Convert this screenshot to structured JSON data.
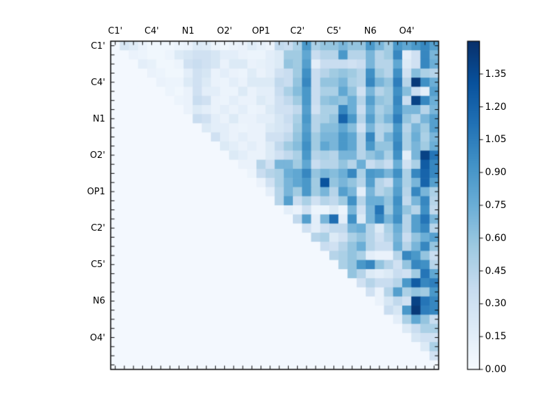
{
  "figure": {
    "background": "#ffffff",
    "title": ""
  },
  "chart_data": {
    "type": "heatmap",
    "colormap": "Blues",
    "vmin": 0.0,
    "vmax": 1.5,
    "grid_size": 36,
    "axis_group_labels": [
      "C1'",
      "C4'",
      "N1",
      "O2'",
      "OP1",
      "C2'",
      "C5'",
      "N6",
      "O4'"
    ],
    "label_cell_positions": [
      0,
      4,
      8,
      12,
      16,
      20,
      24,
      28,
      32
    ],
    "x_axis_side": "top",
    "y_axis_side": "left",
    "legend_position": "right-colorbar",
    "colorbar_ticks": [
      0.0,
      0.15,
      0.3,
      0.45,
      0.6,
      0.75,
      0.9,
      1.05,
      1.2,
      1.35
    ],
    "colorbar_tick_labels": [
      "0.00",
      "0.15",
      "0.30",
      "0.45",
      "0.60",
      "0.75",
      "0.90",
      "1.05",
      "1.20",
      "1.35"
    ],
    "colormap_anchors": [
      "#f7fbff",
      "#deebf7",
      "#c6dbef",
      "#9ecae1",
      "#6baed6",
      "#4292c6",
      "#2171b5",
      "#08519c",
      "#08306b"
    ],
    "matrix": [
      [
        0.03,
        0.25,
        0.18,
        0.1,
        0.05,
        0.05,
        0.05,
        0.08,
        0.1,
        0.2,
        0.18,
        0.08,
        0.05,
        0.08,
        0.1,
        0.18,
        0.12,
        0.08,
        0.4,
        0.35,
        0.5,
        0.9,
        0.5,
        0.6,
        0.6,
        0.7,
        0.6,
        0.6,
        0.9,
        0.7,
        0.55,
        0.9,
        0.8,
        0.9,
        1.0,
        0.85
      ],
      [
        0.03,
        0.03,
        0.1,
        0.08,
        0.05,
        0.05,
        0.08,
        0.2,
        0.25,
        0.3,
        0.3,
        0.25,
        0.15,
        0.15,
        0.1,
        0.08,
        0.08,
        0.15,
        0.2,
        0.55,
        0.55,
        0.8,
        0.35,
        0.45,
        0.45,
        0.9,
        0.45,
        0.45,
        0.7,
        0.45,
        0.55,
        1.0,
        0.15,
        0.3,
        1.0,
        0.7
      ],
      [
        0.03,
        0.03,
        0.03,
        0.15,
        0.12,
        0.05,
        0.05,
        0.08,
        0.3,
        0.35,
        0.3,
        0.25,
        0.1,
        0.2,
        0.2,
        0.1,
        0.12,
        0.15,
        0.2,
        0.6,
        0.55,
        0.85,
        0.15,
        0.35,
        0.35,
        0.35,
        0.3,
        0.35,
        0.7,
        0.45,
        0.45,
        0.8,
        0.2,
        0.3,
        1.0,
        0.75
      ],
      [
        0.03,
        0.03,
        0.03,
        0.03,
        0.1,
        0.08,
        0.05,
        0.05,
        0.15,
        0.3,
        0.25,
        0.1,
        0.15,
        0.1,
        0.08,
        0.18,
        0.1,
        0.15,
        0.3,
        0.35,
        0.55,
        0.95,
        0.35,
        0.45,
        0.55,
        0.6,
        0.55,
        0.45,
        0.95,
        0.55,
        0.45,
        0.95,
        0.3,
        0.65,
        0.5,
        0.45
      ],
      [
        0.03,
        0.03,
        0.03,
        0.03,
        0.03,
        0.1,
        0.08,
        0.08,
        0.2,
        0.3,
        0.2,
        0.1,
        0.08,
        0.15,
        0.1,
        0.2,
        0.2,
        0.2,
        0.4,
        0.35,
        0.6,
        1.0,
        0.35,
        0.6,
        0.6,
        0.7,
        0.5,
        0.45,
        1.0,
        0.7,
        0.6,
        1.05,
        0.45,
        1.45,
        0.95,
        0.75
      ],
      [
        0.03,
        0.03,
        0.03,
        0.03,
        0.03,
        0.03,
        0.08,
        0.05,
        0.1,
        0.3,
        0.15,
        0.15,
        0.08,
        0.08,
        0.2,
        0.1,
        0.15,
        0.15,
        0.35,
        0.5,
        0.65,
        0.9,
        0.35,
        0.5,
        0.5,
        0.8,
        0.6,
        0.3,
        0.7,
        0.45,
        0.55,
        0.95,
        0.65,
        0.35,
        0.15,
        0.85
      ],
      [
        0.03,
        0.03,
        0.03,
        0.03,
        0.03,
        0.03,
        0.03,
        0.08,
        0.1,
        0.35,
        0.3,
        0.1,
        0.08,
        0.15,
        0.1,
        0.1,
        0.2,
        0.15,
        0.3,
        0.4,
        0.55,
        0.9,
        0.35,
        0.6,
        0.65,
        0.6,
        0.75,
        0.45,
        0.85,
        0.6,
        0.55,
        1.0,
        0.35,
        1.4,
        1.0,
        0.75
      ],
      [
        0.03,
        0.03,
        0.03,
        0.03,
        0.03,
        0.03,
        0.03,
        0.03,
        0.1,
        0.2,
        0.15,
        0.1,
        0.15,
        0.1,
        0.15,
        0.08,
        0.1,
        0.2,
        0.3,
        0.3,
        0.4,
        0.85,
        0.3,
        0.5,
        0.5,
        1.0,
        0.75,
        0.35,
        0.75,
        0.5,
        0.6,
        0.95,
        0.7,
        0.7,
        0.45,
        0.7
      ],
      [
        0.03,
        0.03,
        0.03,
        0.03,
        0.03,
        0.03,
        0.03,
        0.03,
        0.03,
        0.35,
        0.3,
        0.15,
        0.1,
        0.2,
        0.1,
        0.1,
        0.15,
        0.15,
        0.25,
        0.35,
        0.5,
        0.9,
        0.45,
        0.5,
        0.6,
        1.2,
        0.9,
        0.45,
        0.85,
        0.55,
        0.7,
        1.05,
        0.6,
        0.45,
        0.7,
        0.85
      ],
      [
        0.03,
        0.03,
        0.03,
        0.03,
        0.03,
        0.03,
        0.03,
        0.03,
        0.03,
        0.03,
        0.2,
        0.15,
        0.15,
        0.1,
        0.08,
        0.1,
        0.1,
        0.2,
        0.25,
        0.3,
        0.55,
        0.85,
        0.45,
        0.65,
        0.65,
        0.8,
        0.65,
        0.3,
        0.7,
        0.45,
        0.5,
        0.9,
        0.45,
        0.7,
        0.55,
        0.85
      ],
      [
        0.03,
        0.03,
        0.03,
        0.03,
        0.03,
        0.03,
        0.03,
        0.03,
        0.03,
        0.03,
        0.03,
        0.3,
        0.15,
        0.1,
        0.15,
        0.1,
        0.1,
        0.3,
        0.3,
        0.4,
        0.6,
        0.9,
        0.55,
        0.7,
        0.7,
        0.9,
        0.8,
        0.45,
        1.0,
        0.45,
        0.7,
        0.95,
        0.5,
        0.75,
        0.5,
        0.7
      ],
      [
        0.03,
        0.03,
        0.03,
        0.03,
        0.03,
        0.03,
        0.03,
        0.03,
        0.03,
        0.03,
        0.03,
        0.03,
        0.2,
        0.15,
        0.1,
        0.15,
        0.1,
        0.2,
        0.4,
        0.55,
        0.65,
        0.95,
        0.55,
        0.8,
        0.7,
        0.9,
        0.8,
        0.45,
        0.9,
        0.6,
        0.6,
        1.0,
        0.5,
        0.7,
        0.55,
        0.75
      ],
      [
        0.03,
        0.03,
        0.03,
        0.03,
        0.03,
        0.03,
        0.03,
        0.03,
        0.03,
        0.03,
        0.03,
        0.03,
        0.03,
        0.2,
        0.15,
        0.1,
        0.1,
        0.2,
        0.3,
        0.4,
        0.5,
        0.9,
        0.45,
        0.5,
        0.45,
        0.7,
        0.7,
        0.45,
        0.6,
        0.7,
        0.5,
        0.95,
        0.15,
        0.7,
        1.4,
        1.1
      ],
      [
        0.03,
        0.03,
        0.03,
        0.03,
        0.03,
        0.03,
        0.03,
        0.03,
        0.03,
        0.03,
        0.03,
        0.03,
        0.03,
        0.03,
        0.1,
        0.1,
        0.45,
        0.3,
        0.7,
        0.7,
        0.55,
        0.8,
        0.35,
        0.45,
        0.45,
        0.6,
        0.45,
        0.75,
        0.35,
        0.45,
        0.35,
        0.75,
        0.3,
        0.5,
        1.25,
        1.0
      ],
      [
        0.03,
        0.03,
        0.03,
        0.03,
        0.03,
        0.03,
        0.03,
        0.03,
        0.03,
        0.03,
        0.03,
        0.03,
        0.03,
        0.03,
        0.03,
        0.08,
        0.35,
        0.45,
        0.5,
        0.75,
        0.8,
        1.0,
        0.6,
        0.7,
        0.65,
        0.75,
        1.0,
        0.5,
        0.9,
        0.85,
        0.7,
        0.95,
        0.5,
        1.0,
        1.2,
        1.0
      ],
      [
        0.03,
        0.03,
        0.03,
        0.03,
        0.03,
        0.03,
        0.03,
        0.03,
        0.03,
        0.03,
        0.03,
        0.03,
        0.03,
        0.03,
        0.03,
        0.03,
        0.1,
        0.3,
        0.5,
        0.7,
        0.8,
        0.9,
        0.55,
        1.3,
        0.6,
        0.7,
        0.6,
        0.45,
        0.85,
        0.45,
        0.35,
        0.8,
        0.5,
        0.7,
        1.2,
        0.85
      ],
      [
        0.03,
        0.03,
        0.03,
        0.03,
        0.03,
        0.03,
        0.03,
        0.03,
        0.03,
        0.03,
        0.03,
        0.03,
        0.03,
        0.03,
        0.03,
        0.03,
        0.03,
        0.15,
        0.45,
        0.7,
        0.55,
        0.9,
        0.55,
        0.7,
        0.45,
        0.85,
        0.7,
        0.15,
        0.7,
        0.45,
        0.55,
        0.85,
        0.45,
        1.0,
        0.7,
        0.5
      ],
      [
        0.03,
        0.03,
        0.03,
        0.03,
        0.03,
        0.03,
        0.03,
        0.03,
        0.03,
        0.03,
        0.03,
        0.03,
        0.03,
        0.03,
        0.03,
        0.03,
        0.03,
        0.03,
        0.45,
        0.85,
        0.35,
        0.5,
        0.3,
        0.45,
        0.4,
        0.55,
        0.95,
        0.45,
        0.75,
        0.75,
        0.6,
        0.95,
        0.4,
        0.7,
        1.0,
        0.45
      ],
      [
        0.03,
        0.03,
        0.03,
        0.03,
        0.03,
        0.03,
        0.03,
        0.03,
        0.03,
        0.03,
        0.03,
        0.03,
        0.03,
        0.03,
        0.03,
        0.03,
        0.03,
        0.03,
        0.03,
        0.15,
        0.1,
        0.3,
        0.08,
        0.08,
        0.2,
        0.08,
        0.7,
        0.3,
        0.7,
        1.1,
        0.55,
        0.9,
        0.6,
        0.45,
        0.95,
        0.4
      ],
      [
        0.03,
        0.03,
        0.03,
        0.03,
        0.03,
        0.03,
        0.03,
        0.03,
        0.03,
        0.03,
        0.03,
        0.03,
        0.03,
        0.03,
        0.03,
        0.03,
        0.03,
        0.03,
        0.03,
        0.03,
        0.4,
        0.85,
        0.15,
        0.7,
        1.15,
        0.15,
        0.95,
        0.2,
        0.7,
        1.0,
        0.7,
        0.95,
        0.45,
        0.85,
        1.1,
        0.7
      ],
      [
        0.03,
        0.03,
        0.03,
        0.03,
        0.03,
        0.03,
        0.03,
        0.03,
        0.03,
        0.03,
        0.03,
        0.03,
        0.03,
        0.03,
        0.03,
        0.03,
        0.03,
        0.03,
        0.03,
        0.03,
        0.03,
        0.3,
        0.15,
        0.3,
        0.4,
        0.4,
        0.7,
        0.75,
        0.45,
        0.2,
        0.5,
        0.75,
        0.45,
        0.85,
        1.0,
        0.45
      ],
      [
        0.03,
        0.03,
        0.03,
        0.03,
        0.03,
        0.03,
        0.03,
        0.03,
        0.03,
        0.03,
        0.03,
        0.03,
        0.03,
        0.03,
        0.03,
        0.03,
        0.03,
        0.03,
        0.03,
        0.03,
        0.03,
        0.03,
        0.45,
        0.5,
        0.2,
        0.3,
        0.5,
        0.6,
        0.45,
        0.3,
        0.45,
        0.7,
        0.35,
        0.6,
        0.75,
        0.85
      ],
      [
        0.03,
        0.03,
        0.03,
        0.03,
        0.03,
        0.03,
        0.03,
        0.03,
        0.03,
        0.03,
        0.03,
        0.03,
        0.03,
        0.03,
        0.03,
        0.03,
        0.03,
        0.03,
        0.03,
        0.03,
        0.03,
        0.03,
        0.03,
        0.35,
        0.3,
        0.45,
        0.6,
        0.75,
        0.45,
        0.35,
        0.35,
        0.75,
        0.45,
        0.7,
        1.0,
        0.6
      ],
      [
        0.03,
        0.03,
        0.03,
        0.03,
        0.03,
        0.03,
        0.03,
        0.03,
        0.03,
        0.03,
        0.03,
        0.03,
        0.03,
        0.03,
        0.03,
        0.03,
        0.03,
        0.03,
        0.03,
        0.03,
        0.03,
        0.03,
        0.03,
        0.03,
        0.45,
        0.5,
        0.6,
        0.5,
        0.15,
        0.1,
        0.1,
        0.45,
        1.0,
        0.9,
        0.6,
        0.35
      ],
      [
        0.03,
        0.03,
        0.03,
        0.03,
        0.03,
        0.03,
        0.03,
        0.03,
        0.03,
        0.03,
        0.03,
        0.03,
        0.03,
        0.03,
        0.03,
        0.03,
        0.03,
        0.03,
        0.03,
        0.03,
        0.03,
        0.03,
        0.03,
        0.03,
        0.03,
        0.5,
        0.6,
        0.9,
        1.0,
        0.6,
        0.45,
        0.3,
        0.6,
        1.0,
        0.95,
        0.45
      ],
      [
        0.03,
        0.03,
        0.03,
        0.03,
        0.03,
        0.03,
        0.03,
        0.03,
        0.03,
        0.03,
        0.03,
        0.03,
        0.03,
        0.03,
        0.03,
        0.03,
        0.03,
        0.03,
        0.03,
        0.03,
        0.03,
        0.03,
        0.03,
        0.03,
        0.03,
        0.03,
        0.6,
        0.45,
        0.2,
        0.15,
        0.2,
        0.35,
        0.3,
        0.55,
        1.1,
        0.8
      ],
      [
        0.03,
        0.03,
        0.03,
        0.03,
        0.03,
        0.03,
        0.03,
        0.03,
        0.03,
        0.03,
        0.03,
        0.03,
        0.03,
        0.03,
        0.03,
        0.03,
        0.03,
        0.03,
        0.03,
        0.03,
        0.03,
        0.03,
        0.03,
        0.03,
        0.03,
        0.03,
        0.03,
        0.3,
        0.45,
        0.35,
        0.35,
        0.45,
        0.9,
        1.25,
        1.0,
        1.05
      ],
      [
        0.03,
        0.03,
        0.03,
        0.03,
        0.03,
        0.03,
        0.03,
        0.03,
        0.03,
        0.03,
        0.03,
        0.03,
        0.03,
        0.03,
        0.03,
        0.03,
        0.03,
        0.03,
        0.03,
        0.03,
        0.03,
        0.03,
        0.03,
        0.03,
        0.03,
        0.03,
        0.03,
        0.03,
        0.3,
        0.1,
        0.45,
        0.85,
        0.5,
        0.6,
        0.55,
        0.9
      ],
      [
        0.03,
        0.03,
        0.03,
        0.03,
        0.03,
        0.03,
        0.03,
        0.03,
        0.03,
        0.03,
        0.03,
        0.03,
        0.03,
        0.03,
        0.03,
        0.03,
        0.03,
        0.03,
        0.03,
        0.03,
        0.03,
        0.03,
        0.03,
        0.03,
        0.03,
        0.03,
        0.03,
        0.03,
        0.03,
        0.1,
        0.25,
        0.4,
        0.3,
        1.4,
        1.1,
        1.0
      ],
      [
        0.03,
        0.03,
        0.03,
        0.03,
        0.03,
        0.03,
        0.03,
        0.03,
        0.03,
        0.03,
        0.03,
        0.03,
        0.03,
        0.03,
        0.03,
        0.03,
        0.03,
        0.03,
        0.03,
        0.03,
        0.03,
        0.03,
        0.03,
        0.03,
        0.03,
        0.03,
        0.03,
        0.03,
        0.03,
        0.03,
        0.35,
        0.25,
        0.9,
        1.45,
        1.05,
        1.0
      ],
      [
        0.03,
        0.03,
        0.03,
        0.03,
        0.03,
        0.03,
        0.03,
        0.03,
        0.03,
        0.03,
        0.03,
        0.03,
        0.03,
        0.03,
        0.03,
        0.03,
        0.03,
        0.03,
        0.03,
        0.03,
        0.03,
        0.03,
        0.03,
        0.03,
        0.03,
        0.03,
        0.03,
        0.03,
        0.03,
        0.03,
        0.03,
        0.15,
        0.5,
        0.8,
        0.6,
        0.35
      ],
      [
        0.03,
        0.03,
        0.03,
        0.03,
        0.03,
        0.03,
        0.03,
        0.03,
        0.03,
        0.03,
        0.03,
        0.03,
        0.03,
        0.03,
        0.03,
        0.03,
        0.03,
        0.03,
        0.03,
        0.03,
        0.03,
        0.03,
        0.03,
        0.03,
        0.03,
        0.03,
        0.03,
        0.03,
        0.03,
        0.03,
        0.03,
        0.03,
        0.2,
        0.35,
        0.5,
        0.5
      ],
      [
        0.03,
        0.03,
        0.03,
        0.03,
        0.03,
        0.03,
        0.03,
        0.03,
        0.03,
        0.03,
        0.03,
        0.03,
        0.03,
        0.03,
        0.03,
        0.03,
        0.03,
        0.03,
        0.03,
        0.03,
        0.03,
        0.03,
        0.03,
        0.03,
        0.03,
        0.03,
        0.03,
        0.03,
        0.03,
        0.03,
        0.03,
        0.03,
        0.03,
        0.25,
        0.3,
        0.3
      ],
      [
        0.03,
        0.03,
        0.03,
        0.03,
        0.03,
        0.03,
        0.03,
        0.03,
        0.03,
        0.03,
        0.03,
        0.03,
        0.03,
        0.03,
        0.03,
        0.03,
        0.03,
        0.03,
        0.03,
        0.03,
        0.03,
        0.03,
        0.03,
        0.03,
        0.03,
        0.03,
        0.03,
        0.03,
        0.03,
        0.03,
        0.03,
        0.03,
        0.03,
        0.03,
        0.2,
        0.5
      ],
      [
        0.03,
        0.03,
        0.03,
        0.03,
        0.03,
        0.03,
        0.03,
        0.03,
        0.03,
        0.03,
        0.03,
        0.03,
        0.03,
        0.03,
        0.03,
        0.03,
        0.03,
        0.03,
        0.03,
        0.03,
        0.03,
        0.03,
        0.03,
        0.03,
        0.03,
        0.03,
        0.03,
        0.03,
        0.03,
        0.03,
        0.03,
        0.03,
        0.03,
        0.03,
        0.03,
        0.3
      ],
      [
        0.03,
        0.03,
        0.03,
        0.03,
        0.03,
        0.03,
        0.03,
        0.03,
        0.03,
        0.03,
        0.03,
        0.03,
        0.03,
        0.03,
        0.03,
        0.03,
        0.03,
        0.03,
        0.03,
        0.03,
        0.03,
        0.03,
        0.03,
        0.03,
        0.03,
        0.03,
        0.03,
        0.03,
        0.03,
        0.03,
        0.03,
        0.03,
        0.03,
        0.03,
        0.03,
        0.03
      ]
    ]
  }
}
